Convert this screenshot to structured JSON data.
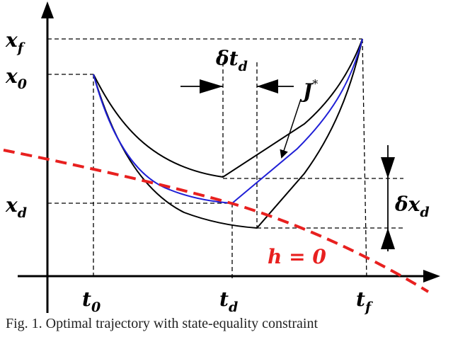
{
  "axes": {
    "x_ticks": {
      "t0": "t",
      "t0_sub": "0",
      "td": "t",
      "td_sub": "d",
      "tf": "t",
      "tf_sub": "f"
    },
    "y_ticks": {
      "xf": "x",
      "xf_sub": "f",
      "x0": "x",
      "x0_sub": "0",
      "xd": "x",
      "xd_sub": "d"
    }
  },
  "annotations": {
    "delta_t": "δt",
    "delta_t_sub": "d",
    "delta_x": "δx",
    "delta_x_sub": "d",
    "j_star": "J",
    "j_star_sup": "*",
    "constraint": "h = 0"
  },
  "colors": {
    "optimal": "#1f1fd6",
    "constraint": "#e8201f",
    "bound": "#000000"
  },
  "caption": "Fig. 1. Optimal trajectory with state-equality constraint"
}
